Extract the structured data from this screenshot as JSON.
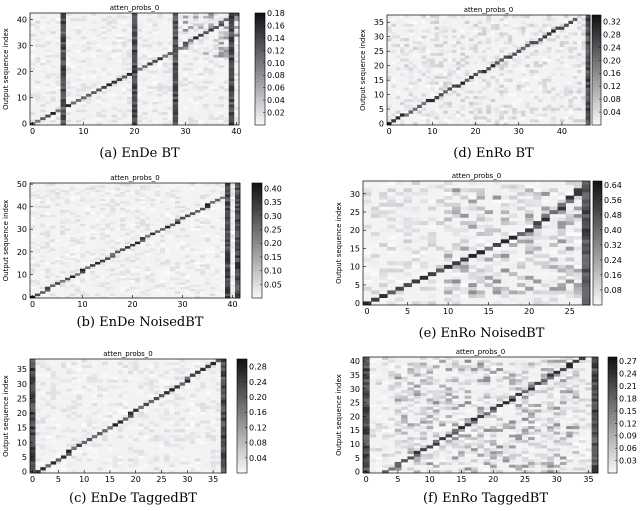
{
  "chart_data": [
    {
      "type": "heatmap",
      "title": "atten_probs_0",
      "caption": "(a) EnDe BT",
      "ylabel": "Output sequence index",
      "x_ticks": [
        "0",
        "10",
        "20",
        "30",
        "40"
      ],
      "y_ticks": [
        "0",
        "10",
        "20",
        "30",
        "40"
      ],
      "colorbar_ticks": [
        "0.18",
        "0.16",
        "0.14",
        "0.12",
        "0.10",
        "0.08",
        "0.06",
        "0.04",
        "0.02"
      ],
      "xlim": [
        0,
        41
      ],
      "ylim": [
        0,
        43
      ],
      "vmax": 0.18,
      "dark_columns": [
        6,
        20,
        28,
        39
      ],
      "diagonal": [
        [
          0,
          0
        ],
        [
          26,
          26
        ],
        [
          41,
          43
        ]
      ],
      "scatter_region": [
        [
          30,
          26
        ],
        [
          41,
          43
        ]
      ]
    },
    {
      "type": "heatmap",
      "title": "atten_probs_0",
      "caption": "(d) EnRo BT",
      "ylabel": "Output sequence index",
      "x_ticks": [
        "0",
        "10",
        "20",
        "30",
        "40"
      ],
      "y_ticks": [
        "0",
        "5",
        "10",
        "15",
        "20",
        "25",
        "30",
        "35"
      ],
      "colorbar_ticks": [
        "0.32",
        "0.28",
        "0.24",
        "0.20",
        "0.16",
        "0.12",
        "0.08",
        "0.04"
      ],
      "xlim": [
        0,
        47
      ],
      "ylim": [
        0,
        38
      ],
      "vmax": 0.34,
      "dark_columns": [
        46
      ],
      "diagonal": [
        [
          0,
          0
        ],
        [
          43,
          36
        ]
      ],
      "scatter_region": []
    },
    {
      "type": "heatmap",
      "title": "atten_probs_0",
      "caption": "(b) EnDe NoisedBT",
      "ylabel": "Output sequence index",
      "x_ticks": [
        "0",
        "10",
        "20",
        "30",
        "40"
      ],
      "y_ticks": [
        "0",
        "10",
        "20",
        "30",
        "40",
        "50"
      ],
      "colorbar_ticks": [
        "0.40",
        "0.35",
        "0.30",
        "0.25",
        "0.20",
        "0.15",
        "0.10",
        "0.05"
      ],
      "xlim": [
        0,
        42
      ],
      "ylim": [
        0,
        51
      ],
      "vmax": 0.42,
      "dark_columns": [
        39,
        41
      ],
      "diagonal": [
        [
          0,
          0
        ],
        [
          38,
          44
        ]
      ],
      "scatter_region": []
    },
    {
      "type": "heatmap",
      "title": "atten_probs_0",
      "caption": "(e) EnRo NoisedBT",
      "ylabel": "Output sequence index",
      "x_ticks": [
        "0",
        "5",
        "10",
        "15",
        "20",
        "25"
      ],
      "y_ticks": [
        "0",
        "5",
        "10",
        "15",
        "20",
        "25",
        "30"
      ],
      "colorbar_ticks": [
        "0.64",
        "0.56",
        "0.48",
        "0.40",
        "0.32",
        "0.24",
        "0.16",
        "0.08"
      ],
      "xlim": [
        0,
        28
      ],
      "ylim": [
        0,
        34
      ],
      "vmax": 0.66,
      "dark_columns": [
        27
      ],
      "diagonal": [
        [
          0,
          0
        ],
        [
          20,
          20
        ],
        [
          27,
          32
        ]
      ],
      "scatter_region": [
        [
          10,
          3
        ],
        [
          27,
          33
        ]
      ]
    },
    {
      "type": "heatmap",
      "title": "atten_probs_0",
      "caption": "(c) EnDe TaggedBT",
      "ylabel": "Output sequence index",
      "x_ticks": [
        "0",
        "5",
        "10",
        "15",
        "20",
        "25",
        "30",
        "35"
      ],
      "y_ticks": [
        "0",
        "5",
        "10",
        "15",
        "20",
        "25",
        "30",
        "35"
      ],
      "colorbar_ticks": [
        "0.28",
        "0.24",
        "0.20",
        "0.16",
        "0.12",
        "0.08",
        "0.04"
      ],
      "xlim": [
        0,
        38
      ],
      "ylim": [
        0,
        39
      ],
      "vmax": 0.3,
      "dark_columns": [
        0,
        37
      ],
      "diagonal": [
        [
          1,
          0
        ],
        [
          36,
          38
        ]
      ],
      "scatter_region": []
    },
    {
      "type": "heatmap",
      "title": "atten_probs_0",
      "caption": "(f) EnRo TaggedBT",
      "ylabel": "Output sequence index",
      "x_ticks": [
        "0",
        "5",
        "10",
        "15",
        "20",
        "25",
        "30",
        "35"
      ],
      "y_ticks": [
        "0",
        "5",
        "10",
        "15",
        "20",
        "25",
        "30",
        "35",
        "40"
      ],
      "colorbar_ticks": [
        "0.27",
        "0.24",
        "0.21",
        "0.18",
        "0.15",
        "0.12",
        "0.09",
        "0.06",
        "0.03"
      ],
      "xlim": [
        0,
        37
      ],
      "ylim": [
        0,
        42
      ],
      "vmax": 0.28,
      "dark_columns": [
        0,
        36
      ],
      "diagonal": [
        [
          3,
          0
        ],
        [
          34,
          41
        ]
      ],
      "scatter_region": [
        [
          5,
          0
        ],
        [
          34,
          41
        ]
      ]
    }
  ]
}
